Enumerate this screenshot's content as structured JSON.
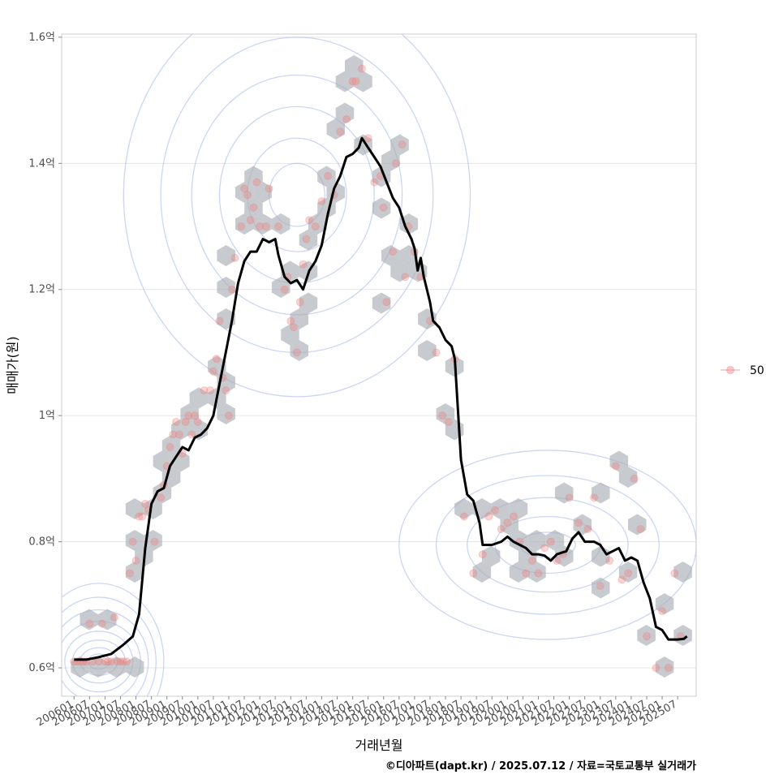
{
  "chart_data": {
    "type": "line",
    "xlabel": "거래년월",
    "ylabel": "매매가(원)",
    "caption": "©디아파트(dapt.kr) / 2025.07.12 / 자료=국토교통부 실거래가",
    "x_ticks": [
      "200601",
      "200607",
      "200701",
      "200707",
      "200801",
      "200807",
      "200901",
      "200907",
      "201001",
      "201007",
      "201101",
      "201107",
      "201201",
      "201207",
      "201301",
      "201307",
      "201401",
      "201407",
      "201501",
      "201507",
      "201601",
      "201607",
      "201701",
      "201707",
      "201801",
      "201807",
      "201901",
      "201907",
      "202001",
      "202007",
      "202101",
      "202107",
      "202201",
      "202207",
      "202301",
      "202307",
      "202401",
      "202407",
      "202501",
      "202507"
    ],
    "y_ticks": [
      {
        "value": 0.6,
        "label": "0.6억"
      },
      {
        "value": 0.8,
        "label": "0.8억"
      },
      {
        "value": 1.0,
        "label": "1억"
      },
      {
        "value": 1.2,
        "label": "1.2억"
      },
      {
        "value": 1.4,
        "label": "1.4억"
      },
      {
        "value": 1.6,
        "label": "1.6억"
      }
    ],
    "x_range": [
      2005.6,
      2026.1
    ],
    "y_range": [
      0.555,
      1.605
    ],
    "y_unit": "억",
    "grid": true,
    "legend": {
      "position": "right",
      "label": "50"
    },
    "colors": {
      "trend": "#000000",
      "points": "#f08080",
      "hexbin": "#a9aeb3",
      "hexbin_light": "#cfe6f7",
      "contour": "#8fa3e6",
      "grid": "#e6e6e6",
      "panel_border": "#cccccc"
    },
    "series": [
      {
        "type": "line",
        "points": [
          [
            2006.0,
            0.613
          ],
          [
            2006.4,
            0.613
          ],
          [
            2006.8,
            0.617
          ],
          [
            2007.2,
            0.622
          ],
          [
            2007.6,
            0.637
          ],
          [
            2007.9,
            0.65
          ],
          [
            2008.1,
            0.685
          ],
          [
            2008.3,
            0.79
          ],
          [
            2008.5,
            0.86
          ],
          [
            2008.7,
            0.88
          ],
          [
            2008.9,
            0.885
          ],
          [
            2009.1,
            0.92
          ],
          [
            2009.3,
            0.935
          ],
          [
            2009.5,
            0.95
          ],
          [
            2009.7,
            0.945
          ],
          [
            2009.9,
            0.965
          ],
          [
            2010.1,
            0.97
          ],
          [
            2010.3,
            0.98
          ],
          [
            2010.5,
            1.0
          ],
          [
            2010.7,
            1.05
          ],
          [
            2010.9,
            1.1
          ],
          [
            2011.1,
            1.15
          ],
          [
            2011.3,
            1.21
          ],
          [
            2011.5,
            1.245
          ],
          [
            2011.7,
            1.26
          ],
          [
            2011.9,
            1.26
          ],
          [
            2012.1,
            1.28
          ],
          [
            2012.3,
            1.275
          ],
          [
            2012.5,
            1.28
          ],
          [
            2012.6,
            1.255
          ],
          [
            2012.8,
            1.22
          ],
          [
            2013.0,
            1.21
          ],
          [
            2013.2,
            1.215
          ],
          [
            2013.4,
            1.2
          ],
          [
            2013.6,
            1.23
          ],
          [
            2013.8,
            1.245
          ],
          [
            2014.0,
            1.27
          ],
          [
            2014.2,
            1.32
          ],
          [
            2014.4,
            1.36
          ],
          [
            2014.6,
            1.38
          ],
          [
            2014.8,
            1.41
          ],
          [
            2015.0,
            1.415
          ],
          [
            2015.2,
            1.425
          ],
          [
            2015.3,
            1.44
          ],
          [
            2015.5,
            1.425
          ],
          [
            2015.7,
            1.41
          ],
          [
            2015.9,
            1.395
          ],
          [
            2016.1,
            1.37
          ],
          [
            2016.3,
            1.345
          ],
          [
            2016.5,
            1.33
          ],
          [
            2016.7,
            1.3
          ],
          [
            2016.9,
            1.28
          ],
          [
            2017.0,
            1.265
          ],
          [
            2017.1,
            1.23
          ],
          [
            2017.2,
            1.25
          ],
          [
            2017.3,
            1.22
          ],
          [
            2017.5,
            1.18
          ],
          [
            2017.6,
            1.15
          ],
          [
            2017.8,
            1.14
          ],
          [
            2018.0,
            1.12
          ],
          [
            2018.2,
            1.11
          ],
          [
            2018.3,
            1.09
          ],
          [
            2018.5,
            0.93
          ],
          [
            2018.7,
            0.875
          ],
          [
            2018.9,
            0.865
          ],
          [
            2019.1,
            0.83
          ],
          [
            2019.2,
            0.795
          ],
          [
            2019.5,
            0.795
          ],
          [
            2019.8,
            0.8
          ],
          [
            2020.0,
            0.808
          ],
          [
            2020.2,
            0.8
          ],
          [
            2020.4,
            0.795
          ],
          [
            2020.6,
            0.79
          ],
          [
            2020.8,
            0.78
          ],
          [
            2021.0,
            0.78
          ],
          [
            2021.2,
            0.778
          ],
          [
            2021.4,
            0.77
          ],
          [
            2021.6,
            0.78
          ],
          [
            2021.9,
            0.785
          ],
          [
            2022.1,
            0.805
          ],
          [
            2022.3,
            0.815
          ],
          [
            2022.5,
            0.8
          ],
          [
            2022.8,
            0.8
          ],
          [
            2023.0,
            0.795
          ],
          [
            2023.2,
            0.78
          ],
          [
            2023.4,
            0.785
          ],
          [
            2023.6,
            0.79
          ],
          [
            2023.8,
            0.77
          ],
          [
            2024.0,
            0.775
          ],
          [
            2024.2,
            0.77
          ],
          [
            2024.4,
            0.735
          ],
          [
            2024.6,
            0.71
          ],
          [
            2024.8,
            0.665
          ],
          [
            2025.0,
            0.66
          ],
          [
            2025.2,
            0.645
          ],
          [
            2025.5,
            0.645
          ],
          [
            2025.7,
            0.646
          ],
          [
            2025.8,
            0.65
          ]
        ]
      },
      {
        "type": "scatter",
        "points": [
          [
            2006.0,
            0.61
          ],
          [
            2006.1,
            0.61
          ],
          [
            2006.2,
            0.61
          ],
          [
            2006.3,
            0.61
          ],
          [
            2006.4,
            0.61
          ],
          [
            2006.5,
            0.67
          ],
          [
            2006.6,
            0.61
          ],
          [
            2006.8,
            0.61
          ],
          [
            2006.9,
            0.67
          ],
          [
            2007.0,
            0.61
          ],
          [
            2007.1,
            0.61
          ],
          [
            2007.2,
            0.61
          ],
          [
            2007.3,
            0.68
          ],
          [
            2007.4,
            0.61
          ],
          [
            2007.5,
            0.61
          ],
          [
            2007.6,
            0.61
          ],
          [
            2007.7,
            0.61
          ],
          [
            2007.8,
            0.75
          ],
          [
            2007.9,
            0.8
          ],
          [
            2008.0,
            0.77
          ],
          [
            2008.1,
            0.84
          ],
          [
            2008.2,
            0.84
          ],
          [
            2008.3,
            0.86
          ],
          [
            2008.4,
            0.85
          ],
          [
            2008.6,
            0.8
          ],
          [
            2008.8,
            0.87
          ],
          [
            2008.9,
            0.89
          ],
          [
            2009.0,
            0.92
          ],
          [
            2009.1,
            0.95
          ],
          [
            2009.2,
            0.97
          ],
          [
            2009.3,
            0.99
          ],
          [
            2009.4,
            0.97
          ],
          [
            2009.5,
            0.94
          ],
          [
            2009.6,
            0.99
          ],
          [
            2009.7,
            1.0
          ],
          [
            2009.8,
            0.97
          ],
          [
            2009.9,
            1.0
          ],
          [
            2010.0,
            0.99
          ],
          [
            2010.2,
            1.04
          ],
          [
            2010.4,
            1.04
          ],
          [
            2010.5,
            1.07
          ],
          [
            2010.6,
            1.09
          ],
          [
            2010.7,
            1.15
          ],
          [
            2010.8,
            1.06
          ],
          [
            2010.9,
            1.04
          ],
          [
            2011.0,
            1.0
          ],
          [
            2011.1,
            1.2
          ],
          [
            2011.2,
            1.25
          ],
          [
            2011.4,
            1.3
          ],
          [
            2011.5,
            1.36
          ],
          [
            2011.6,
            1.35
          ],
          [
            2011.7,
            1.31
          ],
          [
            2011.8,
            1.33
          ],
          [
            2011.9,
            1.37
          ],
          [
            2012.0,
            1.3
          ],
          [
            2012.2,
            1.3
          ],
          [
            2012.3,
            1.36
          ],
          [
            2012.6,
            1.3
          ],
          [
            2012.8,
            1.2
          ],
          [
            2012.9,
            1.22
          ],
          [
            2013.0,
            1.15
          ],
          [
            2013.1,
            1.14
          ],
          [
            2013.2,
            1.1
          ],
          [
            2013.3,
            1.18
          ],
          [
            2013.4,
            1.24
          ],
          [
            2013.5,
            1.28
          ],
          [
            2013.6,
            1.31
          ],
          [
            2013.8,
            1.3
          ],
          [
            2014.0,
            1.34
          ],
          [
            2014.2,
            1.38
          ],
          [
            2014.4,
            1.35
          ],
          [
            2014.6,
            1.45
          ],
          [
            2014.8,
            1.47
          ],
          [
            2015.0,
            1.53
          ],
          [
            2015.1,
            1.53
          ],
          [
            2015.3,
            1.55
          ],
          [
            2015.5,
            1.44
          ],
          [
            2015.7,
            1.37
          ],
          [
            2015.9,
            1.38
          ],
          [
            2016.0,
            1.33
          ],
          [
            2016.1,
            1.18
          ],
          [
            2016.3,
            1.26
          ],
          [
            2016.4,
            1.4
          ],
          [
            2016.6,
            1.43
          ],
          [
            2016.7,
            1.22
          ],
          [
            2016.8,
            1.3
          ],
          [
            2017.0,
            1.26
          ],
          [
            2017.2,
            1.22
          ],
          [
            2017.5,
            1.15
          ],
          [
            2017.7,
            1.1
          ],
          [
            2017.9,
            1.0
          ],
          [
            2018.1,
            0.99
          ],
          [
            2018.3,
            1.09
          ],
          [
            2018.6,
            0.84
          ],
          [
            2018.9,
            0.75
          ],
          [
            2019.2,
            0.78
          ],
          [
            2019.4,
            0.84
          ],
          [
            2019.6,
            0.85
          ],
          [
            2019.8,
            0.82
          ],
          [
            2020.0,
            0.83
          ],
          [
            2020.2,
            0.84
          ],
          [
            2020.4,
            0.8
          ],
          [
            2020.6,
            0.75
          ],
          [
            2020.8,
            0.77
          ],
          [
            2021.0,
            0.75
          ],
          [
            2021.2,
            0.79
          ],
          [
            2021.4,
            0.8
          ],
          [
            2021.6,
            0.77
          ],
          [
            2021.8,
            0.78
          ],
          [
            2022.0,
            0.87
          ],
          [
            2022.3,
            0.83
          ],
          [
            2022.6,
            0.82
          ],
          [
            2022.8,
            0.87
          ],
          [
            2023.0,
            0.73
          ],
          [
            2023.3,
            0.77
          ],
          [
            2023.5,
            0.92
          ],
          [
            2023.7,
            0.74
          ],
          [
            2023.9,
            0.75
          ],
          [
            2024.1,
            0.9
          ],
          [
            2024.3,
            0.82
          ],
          [
            2024.5,
            0.65
          ],
          [
            2024.8,
            0.6
          ],
          [
            2025.0,
            0.69
          ],
          [
            2025.2,
            0.6
          ],
          [
            2025.4,
            0.75
          ],
          [
            2025.6,
            0.65
          ]
        ]
      }
    ]
  }
}
